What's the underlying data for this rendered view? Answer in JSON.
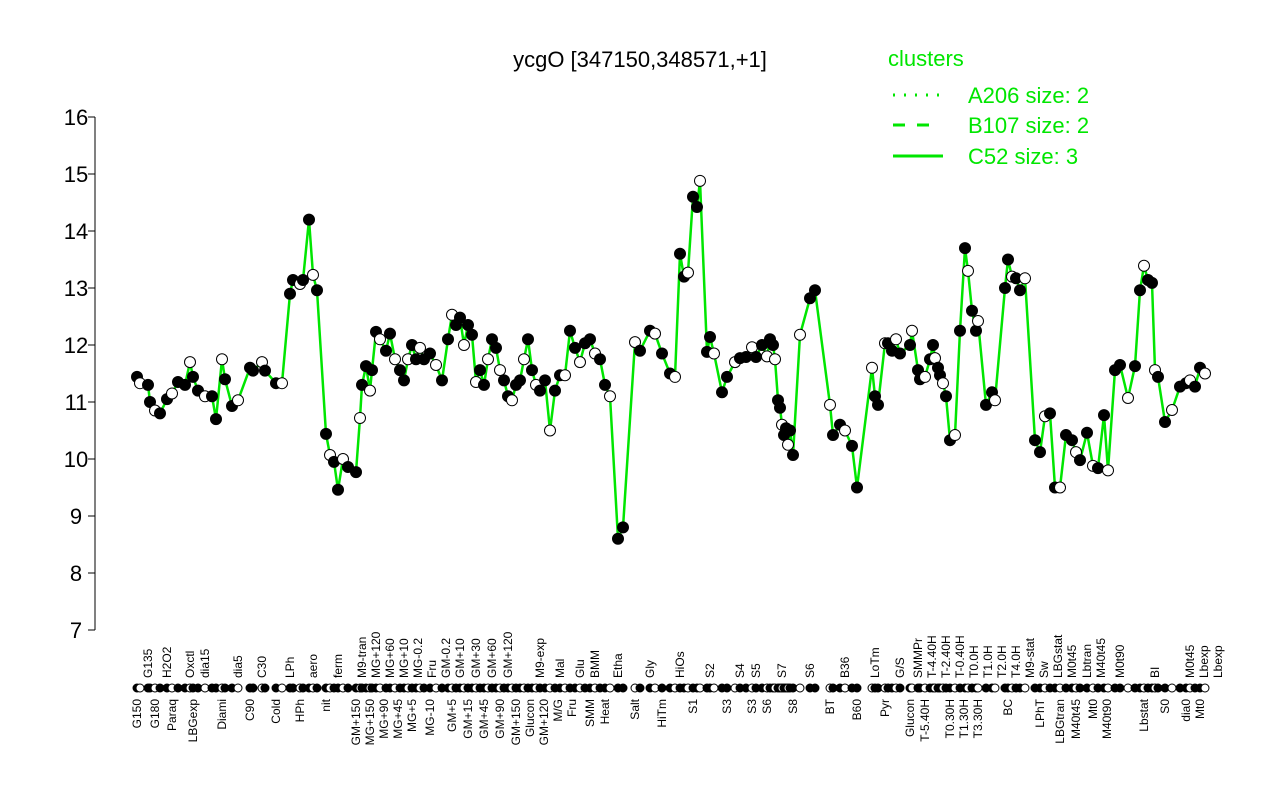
{
  "chart_data": {
    "type": "line",
    "title": "ycgO [347150,348571,+1]",
    "xlabel": "",
    "ylabel": "",
    "ylim": [
      7,
      16
    ],
    "yticks": [
      7,
      8,
      9,
      10,
      11,
      12,
      13,
      14,
      15,
      16
    ],
    "grid": false,
    "legend": {
      "title": "clusters",
      "placement": "top-right",
      "color": "#00e600",
      "entries": [
        {
          "label": "A206 size: 2",
          "style": "dotted"
        },
        {
          "label": "B107 size: 2",
          "style": "dashed"
        },
        {
          "label": "C52 size: 3",
          "style": "solid"
        }
      ]
    },
    "line_color": "#00e600",
    "points": [
      [
        "G150",
        11.44,
        "b"
      ],
      [
        "",
        11.33,
        ""
      ],
      [
        "G135",
        11.3,
        "t"
      ],
      [
        "",
        11.0,
        ""
      ],
      [
        "G180",
        10.85,
        "b"
      ],
      [
        "",
        10.8,
        ""
      ],
      [
        "H2O2",
        11.05,
        "t"
      ],
      [
        "Paraq",
        11.15,
        "b"
      ],
      [
        "",
        11.35,
        ""
      ],
      [
        "",
        11.3,
        ""
      ],
      [
        "Oxctl",
        11.7,
        "t"
      ],
      [
        "LBGexp",
        11.44,
        "b"
      ],
      [
        "",
        11.2,
        ""
      ],
      [
        "dia15",
        11.1,
        "t"
      ],
      [
        "",
        11.1,
        ""
      ],
      [
        "",
        10.7,
        ""
      ],
      [
        "Diami",
        11.75,
        "b"
      ],
      [
        "",
        11.4,
        ""
      ],
      [
        "",
        10.93,
        ""
      ],
      [
        "dia5",
        11.03,
        "t"
      ],
      [
        "C90",
        11.6,
        "b"
      ],
      [
        "",
        11.55,
        ""
      ],
      [
        "C30",
        11.7,
        "t"
      ],
      [
        "",
        11.55,
        ""
      ],
      [
        "Cold",
        11.33,
        "b"
      ],
      [
        "",
        11.33,
        ""
      ],
      [
        "LPh",
        12.9,
        "t"
      ],
      [
        "",
        13.14,
        ""
      ],
      [
        "HPh",
        13.07,
        "b"
      ],
      [
        "",
        13.14,
        ""
      ],
      [
        "",
        14.2,
        ""
      ],
      [
        "aero",
        13.23,
        "t"
      ],
      [
        "",
        12.96,
        ""
      ],
      [
        "nit",
        10.44,
        "b"
      ],
      [
        "",
        10.07,
        ""
      ],
      [
        "",
        9.95,
        ""
      ],
      [
        "ferm",
        9.46,
        "t"
      ],
      [
        "",
        10.0,
        ""
      ],
      [
        "",
        9.86,
        ""
      ],
      [
        "GM+150",
        9.77,
        "b"
      ],
      [
        "",
        10.72,
        ""
      ],
      [
        "M9-tran",
        11.3,
        "t"
      ],
      [
        "",
        11.63,
        ""
      ],
      [
        "MG+150",
        11.2,
        "b"
      ],
      [
        "",
        11.56,
        ""
      ],
      [
        "MG+120",
        12.23,
        "t"
      ],
      [
        "MG+90",
        12.1,
        "b"
      ],
      [
        "MG+60",
        11.9,
        "t"
      ],
      [
        "",
        12.2,
        ""
      ],
      [
        "MG+45",
        11.75,
        "b"
      ],
      [
        "MG+10",
        11.56,
        "t"
      ],
      [
        "",
        11.38,
        ""
      ],
      [
        "MG+5",
        11.75,
        "b"
      ],
      [
        "MG-0.2",
        12.0,
        "t"
      ],
      [
        "",
        11.75,
        ""
      ],
      [
        "Fru",
        11.95,
        "t"
      ],
      [
        "",
        11.75,
        ""
      ],
      [
        "MG-10",
        11.85,
        "b"
      ],
      [
        "",
        11.65,
        ""
      ],
      [
        "GM-0.2",
        11.38,
        "t"
      ],
      [
        "",
        12.1,
        ""
      ],
      [
        "GM+5",
        12.53,
        "b"
      ],
      [
        "",
        12.35,
        ""
      ],
      [
        "GM+10",
        12.48,
        "t"
      ],
      [
        "",
        12.0,
        ""
      ],
      [
        "GM+15",
        12.35,
        "b"
      ],
      [
        "",
        12.18,
        ""
      ],
      [
        "GM+30",
        11.35,
        "t"
      ],
      [
        "",
        11.56,
        ""
      ],
      [
        "GM+45",
        11.3,
        "b"
      ],
      [
        "",
        11.75,
        ""
      ],
      [
        "GM+60",
        12.1,
        "t"
      ],
      [
        "",
        11.95,
        ""
      ],
      [
        "GM+90",
        11.56,
        "b"
      ],
      [
        "",
        11.38,
        ""
      ],
      [
        "GM+120",
        11.1,
        "t"
      ],
      [
        "",
        11.03,
        ""
      ],
      [
        "GM+150",
        11.3,
        "b"
      ],
      [
        "",
        11.38,
        ""
      ],
      [
        "Glucon",
        11.75,
        "b"
      ],
      [
        "",
        12.1,
        ""
      ],
      [
        "GM+120",
        11.56,
        "b"
      ],
      [
        "",
        11.3,
        ""
      ],
      [
        "M9-exp",
        11.2,
        "t"
      ],
      [
        "",
        11.38,
        ""
      ],
      [
        "M/G",
        10.5,
        "b"
      ],
      [
        "",
        11.2,
        ""
      ],
      [
        "Mal",
        11.47,
        "t"
      ],
      [
        "",
        11.47,
        ""
      ],
      [
        "Fru",
        12.25,
        "b"
      ],
      [
        "",
        11.95,
        ""
      ],
      [
        "Glu",
        11.7,
        "t"
      ],
      [
        "",
        12.03,
        ""
      ],
      [
        "SMM",
        12.1,
        "b"
      ],
      [
        "BMM",
        11.85,
        "t"
      ],
      [
        "",
        11.75,
        ""
      ],
      [
        "Heat",
        11.3,
        "b"
      ],
      [
        "",
        11.1,
        ""
      ],
      [
        "Etha",
        8.6,
        "t"
      ],
      [
        "",
        8.8,
        ""
      ],
      [
        "Salt",
        12.05,
        "b"
      ],
      [
        "",
        11.9,
        ""
      ],
      [
        "Gly",
        12.25,
        "t"
      ],
      [
        "",
        12.2,
        ""
      ],
      [
        "HiTm",
        11.85,
        "b"
      ],
      [
        "",
        11.5,
        ""
      ],
      [
        "",
        11.44,
        ""
      ],
      [
        "HiOs",
        13.6,
        "t"
      ],
      [
        "",
        13.2,
        ""
      ],
      [
        "",
        13.27,
        ""
      ],
      [
        "S1",
        14.6,
        "b"
      ],
      [
        "",
        14.42,
        ""
      ],
      [
        "",
        14.88,
        ""
      ],
      [
        "",
        11.88,
        ""
      ],
      [
        "S2",
        12.14,
        "t"
      ],
      [
        "",
        11.85,
        ""
      ],
      [
        "",
        11.17,
        ""
      ],
      [
        "S3",
        11.44,
        "b"
      ],
      [
        "",
        11.7,
        ""
      ],
      [
        "S4",
        11.77,
        "t"
      ],
      [
        "",
        11.79,
        ""
      ],
      [
        "S3",
        11.96,
        "b"
      ],
      [
        "S5",
        11.79,
        "t"
      ],
      [
        "",
        12.0,
        ""
      ],
      [
        "S6",
        11.8,
        "b"
      ],
      [
        "",
        12.1,
        ""
      ],
      [
        "",
        12.0,
        ""
      ],
      [
        "",
        11.75,
        ""
      ],
      [
        "",
        11.03,
        ""
      ],
      [
        "",
        10.9,
        ""
      ],
      [
        "S7",
        10.6,
        "t"
      ],
      [
        "",
        10.42,
        ""
      ],
      [
        "",
        10.54,
        ""
      ],
      [
        "",
        10.25,
        ""
      ],
      [
        "",
        10.5,
        ""
      ],
      [
        "S8",
        10.07,
        "b"
      ],
      [
        "",
        12.18,
        ""
      ],
      [
        "S6",
        12.82,
        "t"
      ],
      [
        "",
        12.96,
        ""
      ],
      [
        "BT",
        10.95,
        "b"
      ],
      [
        "",
        10.42,
        ""
      ],
      [
        "",
        10.6,
        ""
      ],
      [
        "B36",
        10.5,
        "t"
      ],
      [
        "",
        10.23,
        ""
      ],
      [
        "B60",
        9.5,
        "b"
      ],
      [
        "",
        11.6,
        ""
      ],
      [
        "LoTm",
        11.1,
        "t"
      ],
      [
        "",
        10.95,
        ""
      ],
      [
        "Pyr",
        12.03,
        "b"
      ],
      [
        "",
        12.03,
        ""
      ],
      [
        "",
        11.9,
        ""
      ],
      [
        "",
        12.1,
        ""
      ],
      [
        "G/S",
        11.85,
        "t"
      ],
      [
        "Glucon",
        12.0,
        "b"
      ],
      [
        "",
        12.25,
        ""
      ],
      [
        "SMMPr",
        11.56,
        "t"
      ],
      [
        "",
        11.4,
        ""
      ],
      [
        "T-5.40H",
        11.44,
        "b"
      ],
      [
        "T-4.40H",
        11.75,
        "t"
      ],
      [
        "",
        12.0,
        ""
      ],
      [
        "T-2.40H",
        11.77,
        "t"
      ],
      [
        "",
        11.6,
        ""
      ],
      [
        "T-0.40H",
        11.47,
        "t"
      ],
      [
        "",
        11.33,
        ""
      ],
      [
        "T0.0H",
        11.1,
        "t"
      ],
      [
        "T0.30H",
        10.33,
        "b"
      ],
      [
        "",
        10.42,
        ""
      ],
      [
        "T1.30H",
        12.25,
        "b"
      ],
      [
        "T1.0H",
        13.7,
        "t"
      ],
      [
        "",
        13.3,
        ""
      ],
      [
        "T2.0H",
        12.6,
        "t"
      ],
      [
        "T3.30H",
        12.25,
        "b"
      ],
      [
        "T4.0H",
        12.42,
        "t"
      ],
      [
        "M9-stat",
        10.95,
        "t"
      ],
      [
        "",
        11.17,
        ""
      ],
      [
        "",
        11.03,
        ""
      ],
      [
        "",
        13.0,
        ""
      ],
      [
        "BC",
        13.5,
        "b"
      ],
      [
        "",
        13.2,
        ""
      ],
      [
        "",
        13.17,
        ""
      ],
      [
        "Sw",
        12.96,
        "t"
      ],
      [
        "",
        13.17,
        ""
      ],
      [
        "",
        10.33,
        ""
      ],
      [
        "LPhT",
        10.12,
        "b"
      ],
      [
        "",
        10.75,
        ""
      ],
      [
        "",
        10.8,
        ""
      ],
      [
        "LBGstat",
        9.5,
        "t"
      ],
      [
        "LBGtran",
        9.5,
        "b"
      ],
      [
        "",
        10.42,
        ""
      ],
      [
        "M0t45",
        10.33,
        "t"
      ],
      [
        "M40t45",
        10.12,
        "b"
      ],
      [
        "",
        9.98,
        ""
      ],
      [
        "Lbtran",
        10.46,
        "t"
      ],
      [
        "Mt0",
        9.88,
        "b"
      ],
      [
        "M40t45",
        9.84,
        "t"
      ],
      [
        "M40t90",
        10.77,
        "b"
      ],
      [
        "",
        9.8,
        ""
      ],
      [
        "",
        11.56,
        ""
      ],
      [
        "M0t90",
        11.65,
        "t"
      ],
      [
        "",
        11.07,
        ""
      ],
      [
        "",
        11.63,
        ""
      ],
      [
        "",
        12.96,
        ""
      ],
      [
        "Lbstat",
        13.39,
        "b"
      ],
      [
        "",
        13.14,
        ""
      ],
      [
        "",
        13.09,
        ""
      ],
      [
        "BI",
        11.56,
        "t"
      ],
      [
        "",
        11.44,
        ""
      ],
      [
        "S0",
        10.65,
        "b"
      ],
      [
        "",
        10.86,
        ""
      ],
      [
        "",
        11.27,
        ""
      ],
      [
        "dia0",
        11.33,
        "b"
      ],
      [
        "M0t45",
        11.38,
        "t"
      ],
      [
        "Lbexp",
        11.27,
        "t"
      ],
      [
        "Mt0",
        11.6,
        "b"
      ],
      [
        "Lbexp",
        11.5,
        "t"
      ]
    ]
  }
}
